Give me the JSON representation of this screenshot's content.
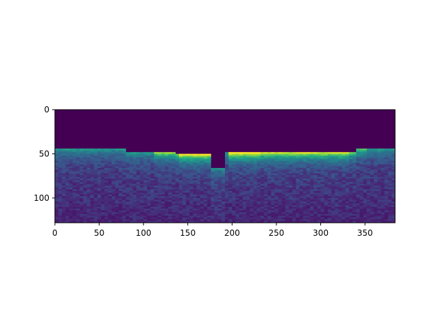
{
  "chart_data": {
    "type": "heatmap",
    "title": "",
    "xlabel": "",
    "ylabel": "",
    "colormap": "viridis",
    "image_shape": [
      128,
      384
    ],
    "xlim": [
      0,
      384
    ],
    "ylim": [
      128,
      0
    ],
    "x_ticks": [
      0,
      50,
      100,
      150,
      200,
      250,
      300,
      350
    ],
    "y_ticks": [
      0,
      50,
      100
    ],
    "grid": false,
    "legend": "none",
    "colors": {
      "background_low": "#440154",
      "low": "#433e85",
      "mid_low": "#31688e",
      "mid": "#21918c",
      "mid_high": "#35b779",
      "high": "#90d743",
      "max": "#fde725"
    }
  }
}
